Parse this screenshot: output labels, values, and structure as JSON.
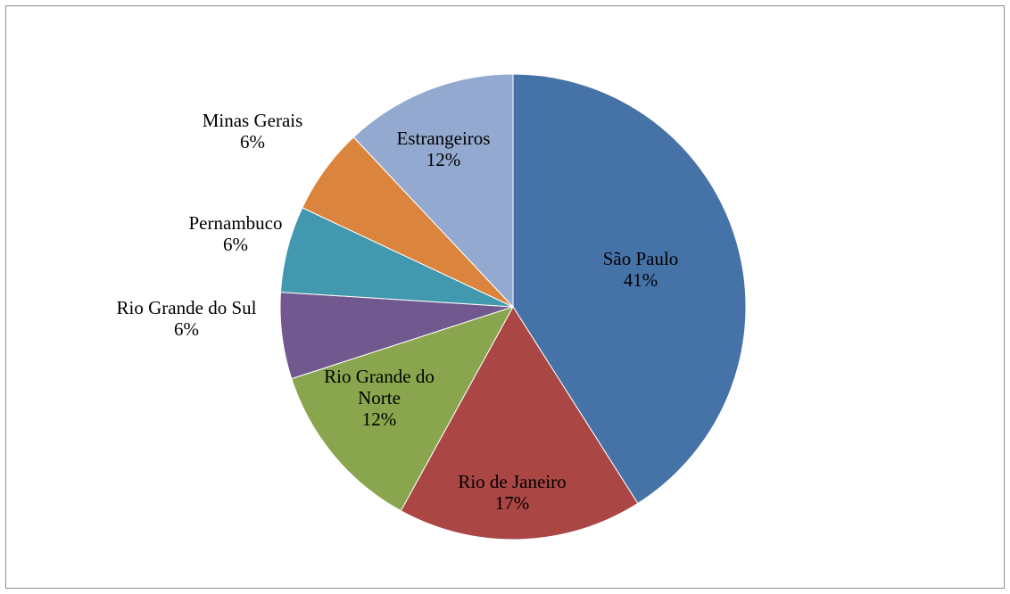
{
  "chart_data": {
    "type": "pie",
    "title": "",
    "start_angle_deg": 0,
    "direction": "clockwise",
    "slices": [
      {
        "label": "São Paulo",
        "label_lines": [
          "São Paulo"
        ],
        "value": 41,
        "percent_text": "41%",
        "color": "#4572A7"
      },
      {
        "label": "Rio de Janeiro",
        "label_lines": [
          "Rio de Janeiro"
        ],
        "value": 17,
        "percent_text": "17%",
        "color": "#AA4643"
      },
      {
        "label": "Rio Grande do Norte",
        "label_lines": [
          "Rio Grande do",
          "Norte"
        ],
        "value": 12,
        "percent_text": "12%",
        "color": "#89A54E"
      },
      {
        "label": "Rio Grande do Sul",
        "label_lines": [
          "Rio Grande do Sul"
        ],
        "value": 6,
        "percent_text": "6%",
        "color": "#71588F"
      },
      {
        "label": "Pernambuco",
        "label_lines": [
          "Pernambuco"
        ],
        "value": 6,
        "percent_text": "6%",
        "color": "#4198AF"
      },
      {
        "label": "Minas Gerais",
        "label_lines": [
          "Minas Gerais"
        ],
        "value": 6,
        "percent_text": "6%",
        "color": "#DB843D"
      },
      {
        "label": "Estrangeiros",
        "label_lines": [
          "Estrangeiros"
        ],
        "value": 12,
        "percent_text": "12%",
        "color": "#93A9CF"
      }
    ]
  }
}
